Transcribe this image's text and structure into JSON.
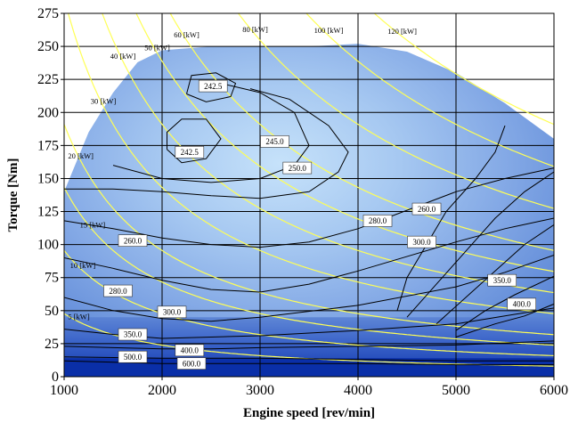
{
  "chart_data": {
    "type": "contour",
    "title": "",
    "xlabel": "Engine speed [rev/min]",
    "ylabel": "Torque [Nm]",
    "xlim": [
      1000,
      6000
    ],
    "ylim": [
      0,
      275
    ],
    "xticks": [
      "1000",
      "2000",
      "3000",
      "4000",
      "5000",
      "6000"
    ],
    "yticks": [
      "0",
      "25",
      "50",
      "75",
      "100",
      "125",
      "150",
      "175",
      "200",
      "225",
      "250",
      "275"
    ],
    "grid": true,
    "colors": {
      "fill_outer": "#5b86d6",
      "fill_mid": "#8ab0e8",
      "fill_inner": "#c6e2fa",
      "fill_bottom": "#0a2fa8",
      "power_line": "#ffff55",
      "contour_line": "#000000",
      "grid": "#000000"
    },
    "max_torque_curve": [
      {
        "x": 1000,
        "y": 140
      },
      {
        "x": 1250,
        "y": 185
      },
      {
        "x": 1500,
        "y": 215
      },
      {
        "x": 1750,
        "y": 238
      },
      {
        "x": 2000,
        "y": 247
      },
      {
        "x": 2500,
        "y": 250
      },
      {
        "x": 3000,
        "y": 250
      },
      {
        "x": 3500,
        "y": 250
      },
      {
        "x": 4000,
        "y": 252
      },
      {
        "x": 4500,
        "y": 246
      },
      {
        "x": 5000,
        "y": 230
      },
      {
        "x": 5500,
        "y": 207
      },
      {
        "x": 6000,
        "y": 180
      }
    ],
    "power_lines": [
      {
        "label": "5 [kW]",
        "kw": 5,
        "label_x": 1150
      },
      {
        "label": "10 [kW]",
        "kw": 10,
        "label_x": 1190
      },
      {
        "label": "15 [kW]",
        "kw": 15,
        "label_x": 1290
      },
      {
        "label": "20 [kW]",
        "kw": 20,
        "label_x": 1170
      },
      {
        "label": "30 [kW]",
        "kw": 30,
        "label_x": 1400
      },
      {
        "label": "40 [kW]",
        "kw": 40,
        "label_x": 1600
      },
      {
        "label": "50 [kW]",
        "kw": 50,
        "label_x": 1950
      },
      {
        "label": "60 [kW]",
        "kw": 60,
        "label_x": 2250
      },
      {
        "label": "80 [kW]",
        "kw": 80,
        "label_x": 2950
      },
      {
        "label": "100 [kW]",
        "kw": 100,
        "label_x": 3700
      },
      {
        "label": "120 [kW]",
        "kw": 120,
        "label_x": 4450
      }
    ],
    "bsfc_contours": [
      {
        "value": "600.0",
        "points": [
          [
            1000,
            12
          ],
          [
            2000,
            10
          ],
          [
            3000,
            10
          ],
          [
            4000,
            10
          ],
          [
            5000,
            9
          ],
          [
            6000,
            9
          ]
        ],
        "label_at": [
          2300,
          10
        ]
      },
      {
        "value": "500.0",
        "points": [
          [
            1000,
            15
          ],
          [
            2000,
            14
          ],
          [
            3000,
            14
          ],
          [
            4000,
            13
          ],
          [
            5000,
            12
          ],
          [
            6000,
            12
          ]
        ],
        "label_at": [
          1700,
          15
        ]
      },
      {
        "value": "400.0",
        "points": [
          [
            1000,
            23
          ],
          [
            1500,
            22
          ],
          [
            2000,
            21
          ],
          [
            2500,
            21
          ],
          [
            3000,
            22
          ],
          [
            4000,
            23
          ],
          [
            5000,
            24
          ],
          [
            6000,
            27
          ]
        ],
        "label_at": [
          2280,
          20
        ]
      },
      {
        "value": "350.0",
        "points": [
          [
            1000,
            36
          ],
          [
            1500,
            32
          ],
          [
            2000,
            29
          ],
          [
            2500,
            30
          ],
          [
            3000,
            31
          ],
          [
            4000,
            35
          ],
          [
            5000,
            40
          ],
          [
            5500,
            46
          ],
          [
            6000,
            52
          ]
        ],
        "label_at": [
          1700,
          32
        ]
      },
      {
        "value": "300.0",
        "points": [
          [
            1000,
            60
          ],
          [
            1500,
            50
          ],
          [
            2000,
            44
          ],
          [
            2500,
            42
          ],
          [
            3000,
            45
          ],
          [
            4000,
            54
          ],
          [
            5000,
            68
          ],
          [
            5500,
            79
          ],
          [
            6000,
            92
          ]
        ],
        "label_at": [
          2100,
          49
        ]
      },
      {
        "value": "280.0",
        "points": [
          [
            1000,
            90
          ],
          [
            1500,
            82
          ],
          [
            2000,
            73
          ],
          [
            2500,
            66
          ],
          [
            3000,
            64
          ],
          [
            3500,
            70
          ],
          [
            4000,
            80
          ],
          [
            5000,
            102
          ],
          [
            5500,
            112
          ],
          [
            6000,
            120
          ]
        ],
        "label_at": [
          1550,
          65
        ]
      },
      {
        "value": "260.0",
        "points": [
          [
            1000,
            118
          ],
          [
            1500,
            112
          ],
          [
            2000,
            105
          ],
          [
            2500,
            100
          ],
          [
            3000,
            98
          ],
          [
            3500,
            102
          ],
          [
            4000,
            112
          ],
          [
            4500,
            126
          ],
          [
            5000,
            140
          ],
          [
            5500,
            150
          ],
          [
            6000,
            158
          ]
        ],
        "label_at": [
          1700,
          103
        ]
      },
      {
        "value": "250.0",
        "points": [
          [
            1000,
            142
          ],
          [
            1500,
            142
          ],
          [
            2000,
            140
          ],
          [
            2500,
            137
          ],
          [
            3000,
            135
          ],
          [
            3500,
            140
          ],
          [
            3800,
            155
          ],
          [
            3900,
            170
          ],
          [
            3700,
            190
          ],
          [
            3300,
            210
          ],
          [
            2900,
            218
          ]
        ],
        "label_at": [
          3380,
          158
        ]
      },
      {
        "value": "245.0",
        "points": [
          [
            1500,
            160
          ],
          [
            2000,
            150
          ],
          [
            2500,
            147
          ],
          [
            3000,
            150
          ],
          [
            3350,
            160
          ],
          [
            3500,
            175
          ],
          [
            3350,
            200
          ],
          [
            3000,
            215
          ],
          [
            2600,
            222
          ]
        ],
        "label_at": [
          3150,
          178
        ]
      },
      {
        "value": "242.5",
        "points": [
          [
            2050,
            172
          ],
          [
            2200,
            162
          ],
          [
            2450,
            165
          ],
          [
            2600,
            180
          ],
          [
            2450,
            195
          ],
          [
            2200,
            195
          ],
          [
            2050,
            185
          ],
          [
            2050,
            172
          ]
        ],
        "label_at": [
          2280,
          170
        ]
      },
      {
        "value": "242.5",
        "points": [
          [
            2250,
            214
          ],
          [
            2450,
            208
          ],
          [
            2700,
            212
          ],
          [
            2750,
            222
          ],
          [
            2550,
            230
          ],
          [
            2300,
            228
          ],
          [
            2250,
            214
          ]
        ],
        "label_at": [
          2520,
          220
        ]
      },
      {
        "value": "260.0",
        "points": [
          [
            4400,
            50
          ],
          [
            4500,
            75
          ],
          [
            4700,
            100
          ],
          [
            4900,
            125
          ],
          [
            5200,
            150
          ],
          [
            5400,
            170
          ],
          [
            5500,
            190
          ]
        ],
        "label_at": [
          4700,
          127
        ]
      },
      {
        "value": "280.0",
        "points": [
          [
            4500,
            45
          ],
          [
            4800,
            70
          ],
          [
            5100,
            95
          ],
          [
            5400,
            120
          ],
          [
            5700,
            140
          ],
          [
            6000,
            155
          ]
        ],
        "label_at": [
          4200,
          118
        ]
      },
      {
        "value": "300.0",
        "points": [
          [
            4800,
            40
          ],
          [
            5100,
            60
          ],
          [
            5400,
            80
          ],
          [
            5700,
            100
          ],
          [
            6000,
            115
          ]
        ],
        "label_at": [
          4650,
          102
        ]
      },
      {
        "value": "350.0",
        "points": [
          [
            5000,
            35
          ],
          [
            5300,
            50
          ],
          [
            5600,
            62
          ],
          [
            6000,
            76
          ]
        ],
        "label_at": [
          5470,
          73
        ]
      },
      {
        "value": "400.0",
        "points": [
          [
            5000,
            30
          ],
          [
            5400,
            40
          ],
          [
            5700,
            46
          ],
          [
            6000,
            55
          ]
        ],
        "label_at": [
          5670,
          55
        ]
      }
    ]
  }
}
